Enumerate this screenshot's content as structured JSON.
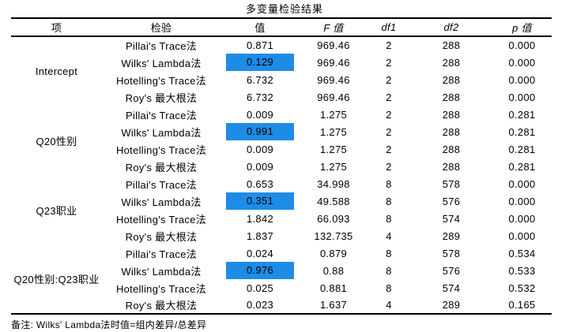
{
  "chart_data": {
    "type": "table",
    "title": "多变量检验结果",
    "columns": [
      "项",
      "检验",
      "值",
      "F 值",
      "df1",
      "df2",
      "p 值"
    ],
    "highlight_color": "#1e8ce6",
    "note": "备注: Wilks' Lambda法时值=组内差异/总差异",
    "groups": [
      {
        "item": "Intercept",
        "rows": [
          {
            "test": "Pillai's Trace法",
            "value": "0.871",
            "f": "969.46",
            "df1": "2",
            "df2": "288",
            "p": "0.000",
            "highlight": false
          },
          {
            "test": "Wilks' Lambda法",
            "value": "0.129",
            "f": "969.46",
            "df1": "2",
            "df2": "288",
            "p": "0.000",
            "highlight": true
          },
          {
            "test": "Hotelling's Trace法",
            "value": "6.732",
            "f": "969.46",
            "df1": "2",
            "df2": "288",
            "p": "0.000",
            "highlight": false
          },
          {
            "test": "Roy's 最大根法",
            "value": "6.732",
            "f": "969.46",
            "df1": "2",
            "df2": "288",
            "p": "0.000",
            "highlight": false
          }
        ]
      },
      {
        "item": "Q20性别",
        "rows": [
          {
            "test": "Pillai's Trace法",
            "value": "0.009",
            "f": "1.275",
            "df1": "2",
            "df2": "288",
            "p": "0.281",
            "highlight": false
          },
          {
            "test": "Wilks' Lambda法",
            "value": "0.991",
            "f": "1.275",
            "df1": "2",
            "df2": "288",
            "p": "0.281",
            "highlight": true
          },
          {
            "test": "Hotelling's Trace法",
            "value": "0.009",
            "f": "1.275",
            "df1": "2",
            "df2": "288",
            "p": "0.281",
            "highlight": false
          },
          {
            "test": "Roy's 最大根法",
            "value": "0.009",
            "f": "1.275",
            "df1": "2",
            "df2": "288",
            "p": "0.281",
            "highlight": false
          }
        ]
      },
      {
        "item": "Q23职业",
        "rows": [
          {
            "test": "Pillai's Trace法",
            "value": "0.653",
            "f": "34.998",
            "df1": "8",
            "df2": "578",
            "p": "0.000",
            "highlight": false
          },
          {
            "test": "Wilks' Lambda法",
            "value": "0.351",
            "f": "49.588",
            "df1": "8",
            "df2": "576",
            "p": "0.000",
            "highlight": true
          },
          {
            "test": "Hotelling's Trace法",
            "value": "1.842",
            "f": "66.093",
            "df1": "8",
            "df2": "574",
            "p": "0.000",
            "highlight": false
          },
          {
            "test": "Roy's 最大根法",
            "value": "1.837",
            "f": "132.735",
            "df1": "4",
            "df2": "289",
            "p": "0.000",
            "highlight": false
          }
        ]
      },
      {
        "item": "Q20性别:Q23职业",
        "rows": [
          {
            "test": "Pillai's Trace法",
            "value": "0.024",
            "f": "0.879",
            "df1": "8",
            "df2": "578",
            "p": "0.534",
            "highlight": false
          },
          {
            "test": "Wilks' Lambda法",
            "value": "0.976",
            "f": "0.88",
            "df1": "8",
            "df2": "576",
            "p": "0.533",
            "highlight": true
          },
          {
            "test": "Hotelling's Trace法",
            "value": "0.025",
            "f": "0.881",
            "df1": "8",
            "df2": "574",
            "p": "0.532",
            "highlight": false
          },
          {
            "test": "Roy's 最大根法",
            "value": "0.023",
            "f": "1.637",
            "df1": "4",
            "df2": "289",
            "p": "0.165",
            "highlight": false
          }
        ]
      }
    ]
  }
}
